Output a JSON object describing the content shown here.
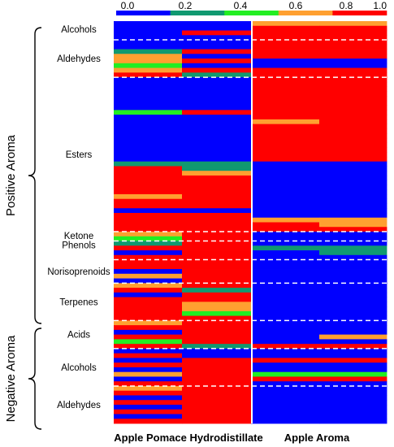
{
  "chart_data": {
    "type": "heatmap",
    "columns": [
      "col1",
      "col2",
      "col3",
      "col4"
    ],
    "panel_labels": [
      "Apple Pomace Hydrodistillate",
      "Apple Aroma"
    ],
    "colorbar": {
      "ticks": [
        "0.0",
        "0.2",
        "0.4",
        "0.6",
        "0.8",
        "1.0"
      ],
      "bins": [
        {
          "from": 0.0,
          "to": 0.2,
          "color": "#0000ff"
        },
        {
          "from": 0.2,
          "to": 0.4,
          "color": "#109970"
        },
        {
          "from": 0.4,
          "to": 0.6,
          "color": "#22ee22"
        },
        {
          "from": 0.6,
          "to": 0.8,
          "color": "#ffa030"
        },
        {
          "from": 0.8,
          "to": 1.0,
          "color": "#ff0000"
        }
      ]
    },
    "aroma_groups": [
      {
        "label": "Positive Aroma",
        "first_group": 0,
        "last_group": 6
      },
      {
        "label": "Negative Aroma",
        "first_group": 7,
        "last_group": 9
      }
    ],
    "groups": [
      {
        "label": "Alcohols",
        "rows": [
          [
            0.1,
            0.1,
            0.7,
            0.7
          ],
          [
            0.1,
            0.1,
            0.9,
            0.9
          ],
          [
            0.1,
            0.9,
            0.9,
            0.9
          ],
          [
            0.1,
            0.1,
            0.9,
            0.9
          ]
        ]
      },
      {
        "label": "Aldehydes",
        "rows": [
          [
            0.1,
            0.1,
            0.9,
            0.9
          ],
          [
            0.1,
            0.1,
            0.9,
            0.9
          ],
          [
            0.3,
            0.9,
            0.9,
            0.9
          ],
          [
            0.7,
            0.1,
            0.9,
            0.9
          ],
          [
            0.7,
            0.9,
            0.1,
            0.1
          ],
          [
            0.5,
            0.1,
            0.1,
            0.1
          ],
          [
            0.7,
            0.9,
            0.9,
            0.9
          ],
          [
            0.9,
            0.3,
            0.9,
            0.9
          ]
        ]
      },
      {
        "label": "Esters",
        "rows": [
          [
            0.1,
            0.1,
            0.9,
            0.9
          ],
          [
            0.1,
            0.1,
            0.9,
            0.9
          ],
          [
            0.1,
            0.1,
            0.9,
            0.9
          ],
          [
            0.1,
            0.1,
            0.9,
            0.9
          ],
          [
            0.1,
            0.1,
            0.9,
            0.9
          ],
          [
            0.1,
            0.1,
            0.9,
            0.9
          ],
          [
            0.1,
            0.1,
            0.9,
            0.9
          ],
          [
            0.5,
            0.9,
            0.9,
            0.9
          ],
          [
            0.1,
            0.1,
            0.9,
            0.9
          ],
          [
            0.1,
            0.1,
            0.7,
            0.9
          ],
          [
            0.1,
            0.1,
            0.9,
            0.9
          ],
          [
            0.1,
            0.1,
            0.9,
            0.9
          ],
          [
            0.1,
            0.1,
            0.9,
            0.9
          ],
          [
            0.1,
            0.1,
            0.9,
            0.9
          ],
          [
            0.1,
            0.1,
            0.9,
            0.9
          ],
          [
            0.1,
            0.1,
            0.9,
            0.9
          ],
          [
            0.1,
            0.1,
            0.9,
            0.9
          ],
          [
            0.1,
            0.1,
            0.9,
            0.9
          ],
          [
            0.3,
            0.3,
            0.1,
            0.1
          ],
          [
            0.9,
            0.3,
            0.1,
            0.1
          ],
          [
            0.9,
            0.7,
            0.1,
            0.1
          ],
          [
            0.9,
            0.9,
            0.1,
            0.1
          ],
          [
            0.9,
            0.9,
            0.1,
            0.1
          ],
          [
            0.9,
            0.9,
            0.1,
            0.1
          ],
          [
            0.9,
            0.9,
            0.1,
            0.1
          ],
          [
            0.7,
            0.9,
            0.1,
            0.1
          ],
          [
            0.9,
            0.9,
            0.1,
            0.1
          ],
          [
            0.9,
            0.9,
            0.1,
            0.1
          ],
          [
            0.1,
            0.1,
            0.1,
            0.1
          ],
          [
            0.9,
            0.9,
            0.1,
            0.1
          ],
          [
            0.9,
            0.9,
            0.7,
            0.7
          ],
          [
            0.9,
            0.9,
            0.9,
            0.7
          ],
          [
            0.9,
            0.9,
            0.9,
            0.9
          ]
        ]
      },
      {
        "label": "Ketone",
        "rows": [
          [
            0.7,
            0.9,
            0.1,
            0.1
          ],
          [
            0.5,
            0.9,
            0.1,
            0.1
          ]
        ]
      },
      {
        "label": "Phenols",
        "rows": [
          [
            0.3,
            0.9,
            0.1,
            0.1
          ],
          [
            0.9,
            0.9,
            0.3,
            0.3
          ],
          [
            0.1,
            0.9,
            0.1,
            0.3
          ],
          [
            0.9,
            0.9,
            0.1,
            0.1
          ]
        ]
      },
      {
        "label": "Norisoprenoids",
        "rows": [
          [
            0.9,
            0.9,
            0.1,
            0.1
          ],
          [
            0.9,
            0.9,
            0.1,
            0.1
          ],
          [
            0.1,
            0.9,
            0.1,
            0.1
          ],
          [
            0.7,
            0.9,
            0.1,
            0.1
          ],
          [
            0.1,
            0.9,
            0.1,
            0.1
          ]
        ]
      },
      {
        "label": "Terpenes",
        "rows": [
          [
            0.7,
            0.9,
            0.1,
            0.1
          ],
          [
            0.9,
            0.3,
            0.1,
            0.1
          ],
          [
            0.1,
            0.9,
            0.1,
            0.1
          ],
          [
            0.9,
            0.9,
            0.1,
            0.1
          ],
          [
            0.9,
            0.7,
            0.1,
            0.1
          ],
          [
            0.9,
            0.7,
            0.1,
            0.1
          ],
          [
            0.9,
            0.5,
            0.1,
            0.1
          ],
          [
            0.9,
            0.9,
            0.1,
            0.1
          ]
        ]
      },
      {
        "label": "Acids",
        "rows": [
          [
            0.7,
            0.9,
            0.1,
            0.1
          ],
          [
            0.9,
            0.9,
            0.1,
            0.1
          ],
          [
            0.1,
            0.9,
            0.1,
            0.1
          ],
          [
            0.9,
            0.9,
            0.1,
            0.7
          ],
          [
            0.5,
            0.9,
            0.1,
            0.1
          ],
          [
            0.9,
            0.3,
            0.9,
            0.9
          ]
        ]
      },
      {
        "label": "Alcohols",
        "rows": [
          [
            0.1,
            0.1,
            0.1,
            0.1
          ],
          [
            0.9,
            0.1,
            0.1,
            0.1
          ],
          [
            0.1,
            0.9,
            0.9,
            0.9
          ],
          [
            0.9,
            0.9,
            0.1,
            0.1
          ],
          [
            0.1,
            0.9,
            0.1,
            0.1
          ],
          [
            0.7,
            0.9,
            0.5,
            0.5
          ],
          [
            0.1,
            0.9,
            0.9,
            0.9
          ],
          [
            0.9,
            0.9,
            0.1,
            0.1
          ]
        ]
      },
      {
        "label": "Aldehydes",
        "rows": [
          [
            0.7,
            0.9,
            0.1,
            0.1
          ],
          [
            0.9,
            0.9,
            0.1,
            0.1
          ],
          [
            0.1,
            0.9,
            0.1,
            0.1
          ],
          [
            0.9,
            0.9,
            0.1,
            0.1
          ],
          [
            0.1,
            0.9,
            0.1,
            0.1
          ],
          [
            0.9,
            0.9,
            0.1,
            0.1
          ],
          [
            0.1,
            0.9,
            0.1,
            0.1
          ],
          [
            0.9,
            0.9,
            0.1,
            0.1
          ]
        ]
      }
    ]
  }
}
